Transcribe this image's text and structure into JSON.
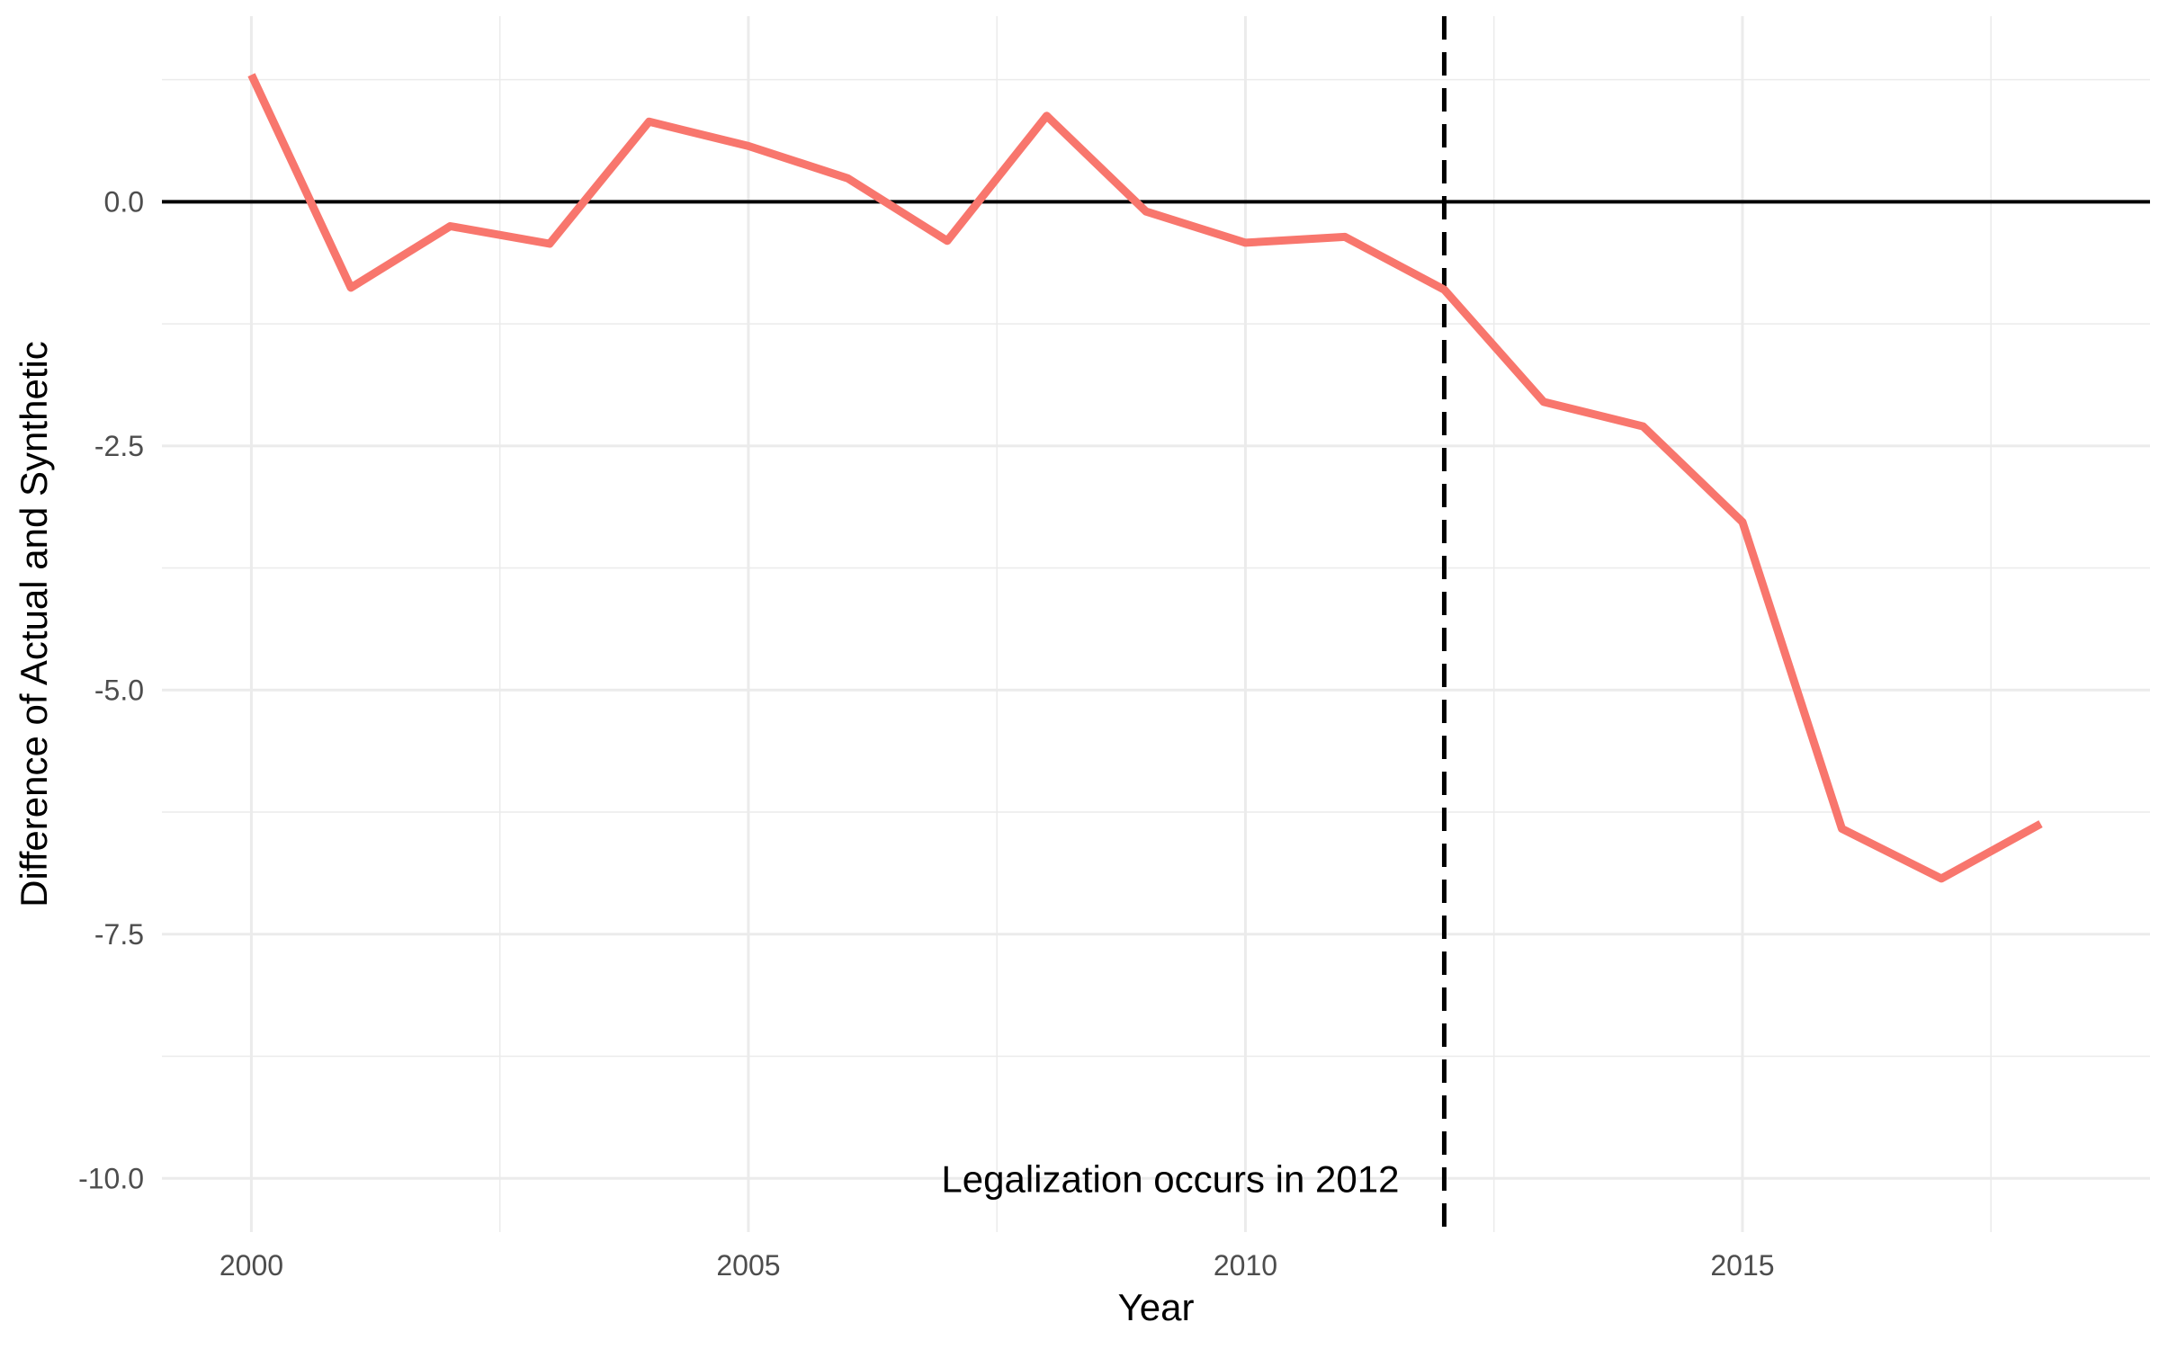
{
  "chart_data": {
    "type": "line",
    "xlabel": "Year",
    "ylabel": "Difference of Actual and Synthetic",
    "x": [
      2000,
      2001,
      2002,
      2003,
      2004,
      2005,
      2006,
      2007,
      2008,
      2009,
      2010,
      2011,
      2012,
      2013,
      2014,
      2015,
      2016,
      2017,
      2018
    ],
    "series": [
      {
        "values": [
          1.3,
          -0.88,
          -0.25,
          -0.43,
          0.82,
          0.57,
          0.24,
          -0.4,
          0.88,
          -0.1,
          -0.42,
          -0.36,
          -0.9,
          -2.05,
          -2.3,
          -3.28,
          -6.42,
          -6.93,
          -6.37
        ],
        "color": "#f8766d"
      }
    ],
    "xlim": [
      1999.1,
      2019.1
    ],
    "ylim": [
      -10.55,
      1.9
    ],
    "x_ticks": [
      2000,
      2005,
      2010,
      2015
    ],
    "x_tick_labels": [
      "2000",
      "2005",
      "2010",
      "2015"
    ],
    "y_ticks": [
      0,
      -2.5,
      -5,
      -7.5,
      -10
    ],
    "y_tick_labels": [
      "0.0",
      "-2.5",
      "-5.0",
      "-7.5",
      "-10.0"
    ],
    "hline": {
      "y": 0,
      "color": "#000000"
    },
    "vline": {
      "x": 2012,
      "style": "dashed",
      "color": "#000000"
    },
    "annotation": {
      "text": "Legalization occurs in 2012",
      "x": 2012,
      "y": -10,
      "anchor": "end"
    },
    "grid": true,
    "legend": "none",
    "colors": {
      "grid": "#ebebeb",
      "tick_text": "#4d4d4d",
      "line": "#f8766d"
    }
  }
}
